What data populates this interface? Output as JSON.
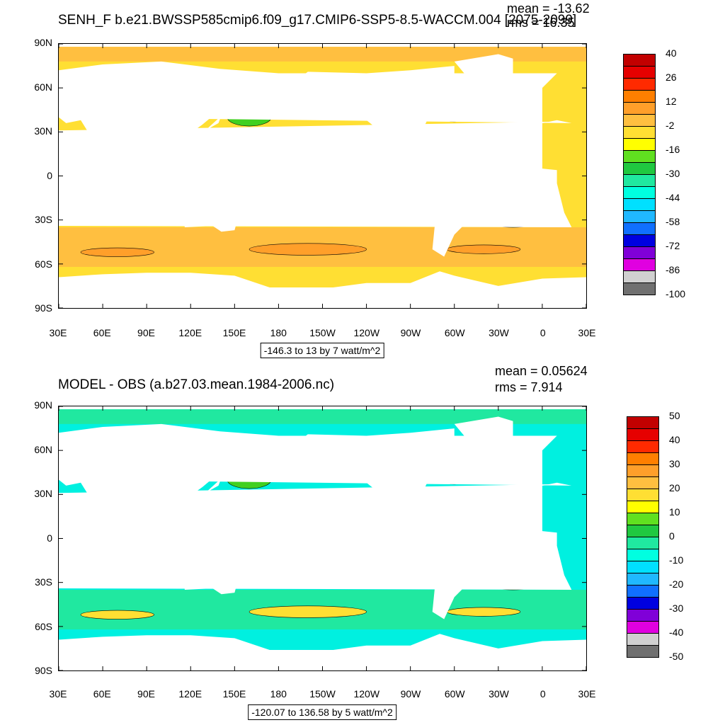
{
  "panels": [
    {
      "title": "SENH_F b.e21.BWSSP585cmip6.f09_g17.CMIP6-SSP5-8.5-WACCM.004 [2075-2099]",
      "mean_label": "mean = -13.62",
      "rms_label": "rms = 16.35",
      "info": "-146.3 to 13 by 7 watt/m^2",
      "colorbar": {
        "labels": [
          "40",
          "26",
          "12",
          "-2",
          "-16",
          "-30",
          "-44",
          "-58",
          "-72",
          "-86",
          "-100"
        ],
        "colors": [
          "#c20000",
          "#e60000",
          "#ff2a00",
          "#ff7f00",
          "#ff9f2a",
          "#ffbf40",
          "#ffdf33",
          "#ffff00",
          "#60e020",
          "#20c840",
          "#20e8a0",
          "#00ffe0",
          "#00e0ff",
          "#20b8ff",
          "#1070ff",
          "#0000e0",
          "#8000d8",
          "#e000e0",
          "#d0d0d0",
          "#707070"
        ]
      },
      "fields": {
        "ocean": "#ffdf33",
        "band": "#ffbf40",
        "green": "#40d020",
        "hot": "#ff9f2a",
        "ice": "#ffbf40"
      }
    },
    {
      "title": "MODEL - OBS (a.b27.03.mean.1984-2006.nc)",
      "mean_label": "mean = 0.05624",
      "rms_label": "rms = 7.914",
      "info": "-120.07 to 136.58 by 5 watt/m^2",
      "colorbar": {
        "labels": [
          "50",
          "40",
          "30",
          "20",
          "10",
          "0",
          "-10",
          "-20",
          "-30",
          "-40",
          "-50"
        ],
        "colors": [
          "#c20000",
          "#e60000",
          "#ff2a00",
          "#ff7f00",
          "#ff9f2a",
          "#ffbf40",
          "#ffdf33",
          "#ffff00",
          "#60e020",
          "#20c840",
          "#20e8a0",
          "#00ffe0",
          "#00e0ff",
          "#20b8ff",
          "#1070ff",
          "#0000e0",
          "#8000d8",
          "#e000e0",
          "#d0d0d0",
          "#707070"
        ]
      },
      "fields": {
        "ocean": "#00f0e0",
        "band": "#20e8a0",
        "green": "#40d020",
        "hot": "#ffdf33",
        "ice": "#20e8a0"
      }
    }
  ],
  "lat_labels": [
    "90N",
    "60N",
    "30N",
    "0",
    "30S",
    "60S",
    "90S"
  ],
  "lon_labels": [
    "30E",
    "60E",
    "90E",
    "120E",
    "150E",
    "180",
    "150W",
    "120W",
    "90W",
    "60W",
    "30W",
    "0",
    "30E"
  ]
}
